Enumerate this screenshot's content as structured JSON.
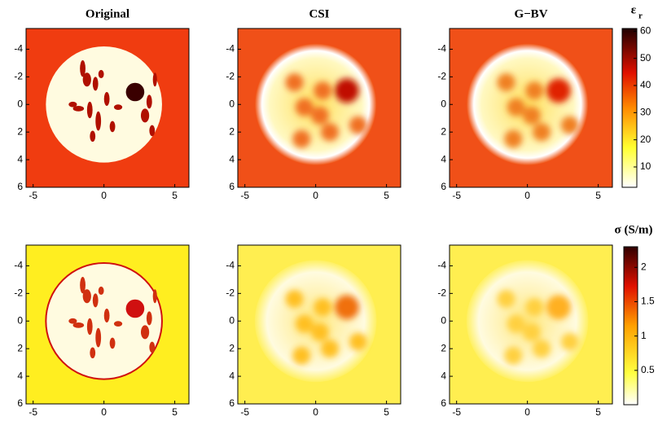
{
  "chart_data": [
    {
      "type": "heatmap",
      "title": "Original",
      "xlim": [
        -5.5,
        6
      ],
      "ylim": [
        -5.5,
        6
      ],
      "xticks": [
        -5,
        0,
        5
      ],
      "yticks": [
        -4,
        -2,
        0,
        2,
        4,
        6
      ]
    },
    {
      "type": "heatmap",
      "title": "CSI",
      "xlim": [
        -5.5,
        6
      ],
      "ylim": [
        -5.5,
        6
      ],
      "xticks": [
        -5,
        0,
        5
      ],
      "yticks": [
        -4,
        -2,
        0,
        2,
        4,
        6
      ]
    },
    {
      "type": "heatmap",
      "title": "G−BV",
      "xlim": [
        -5.5,
        6
      ],
      "ylim": [
        -5.5,
        6
      ],
      "xticks": [
        -5,
        0,
        5
      ],
      "yticks": [
        -4,
        -2,
        0,
        2,
        4,
        6
      ]
    },
    {
      "type": "heatmap",
      "xlim": [
        -5.5,
        6
      ],
      "ylim": [
        -5.5,
        6
      ],
      "xticks": [
        -5,
        0,
        5
      ],
      "yticks": [
        -4,
        -2,
        0,
        2,
        4,
        6
      ]
    },
    {
      "type": "heatmap",
      "xlim": [
        -5.5,
        6
      ],
      "ylim": [
        -5.5,
        6
      ],
      "xticks": [
        -5,
        0,
        5
      ],
      "yticks": [
        -4,
        -2,
        0,
        2,
        4,
        6
      ]
    },
    {
      "type": "heatmap",
      "xlim": [
        -5.5,
        6
      ],
      "ylim": [
        -5.5,
        6
      ],
      "xticks": [
        -5,
        0,
        5
      ],
      "yticks": [
        -4,
        -2,
        0,
        2,
        4,
        6
      ]
    },
    {
      "type": "colorbar",
      "label": "ε",
      "label_sub": "r",
      "ylim": [
        2.5,
        61
      ],
      "yticks": [
        10,
        20,
        30,
        40,
        50,
        60
      ]
    },
    {
      "type": "colorbar",
      "label": "σ (S/m)",
      "ylim": [
        0,
        2.3
      ],
      "yticks": [
        0.5,
        1,
        1.5,
        2
      ]
    }
  ]
}
